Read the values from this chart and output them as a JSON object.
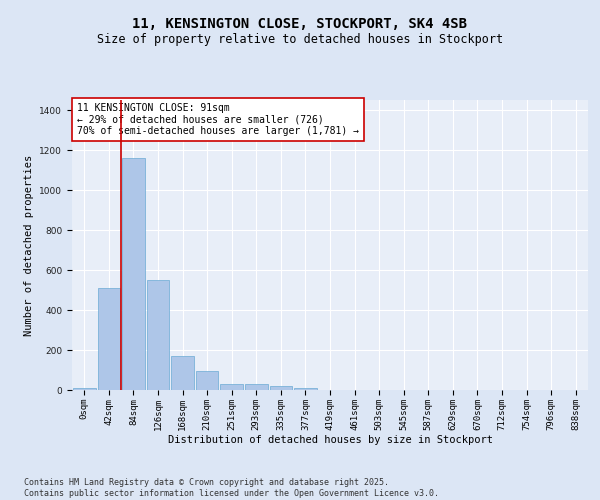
{
  "title": "11, KENSINGTON CLOSE, STOCKPORT, SK4 4SB",
  "subtitle": "Size of property relative to detached houses in Stockport",
  "xlabel": "Distribution of detached houses by size in Stockport",
  "ylabel": "Number of detached properties",
  "categories": [
    "0sqm",
    "42sqm",
    "84sqm",
    "126sqm",
    "168sqm",
    "210sqm",
    "251sqm",
    "293sqm",
    "335sqm",
    "377sqm",
    "419sqm",
    "461sqm",
    "503sqm",
    "545sqm",
    "587sqm",
    "629sqm",
    "670sqm",
    "712sqm",
    "754sqm",
    "796sqm",
    "838sqm"
  ],
  "values": [
    10,
    510,
    1160,
    550,
    170,
    95,
    30,
    28,
    20,
    12,
    0,
    0,
    0,
    0,
    0,
    0,
    0,
    0,
    0,
    0,
    0
  ],
  "bar_color": "#aec6e8",
  "bar_edge_color": "#6aaad4",
  "vline_x": 2,
  "vline_color": "#cc0000",
  "annotation_text": "11 KENSINGTON CLOSE: 91sqm\n← 29% of detached houses are smaller (726)\n70% of semi-detached houses are larger (1,781) →",
  "annotation_box_color": "#ffffff",
  "annotation_box_edge_color": "#cc0000",
  "ylim": [
    0,
    1450
  ],
  "yticks": [
    0,
    200,
    400,
    600,
    800,
    1000,
    1200,
    1400
  ],
  "bg_color": "#dce6f5",
  "plot_bg_color": "#e8eef8",
  "grid_color": "#ffffff",
  "footer_text": "Contains HM Land Registry data © Crown copyright and database right 2025.\nContains public sector information licensed under the Open Government Licence v3.0.",
  "title_fontsize": 10,
  "subtitle_fontsize": 8.5,
  "axis_label_fontsize": 7.5,
  "tick_fontsize": 6.5,
  "annotation_fontsize": 7,
  "footer_fontsize": 6
}
